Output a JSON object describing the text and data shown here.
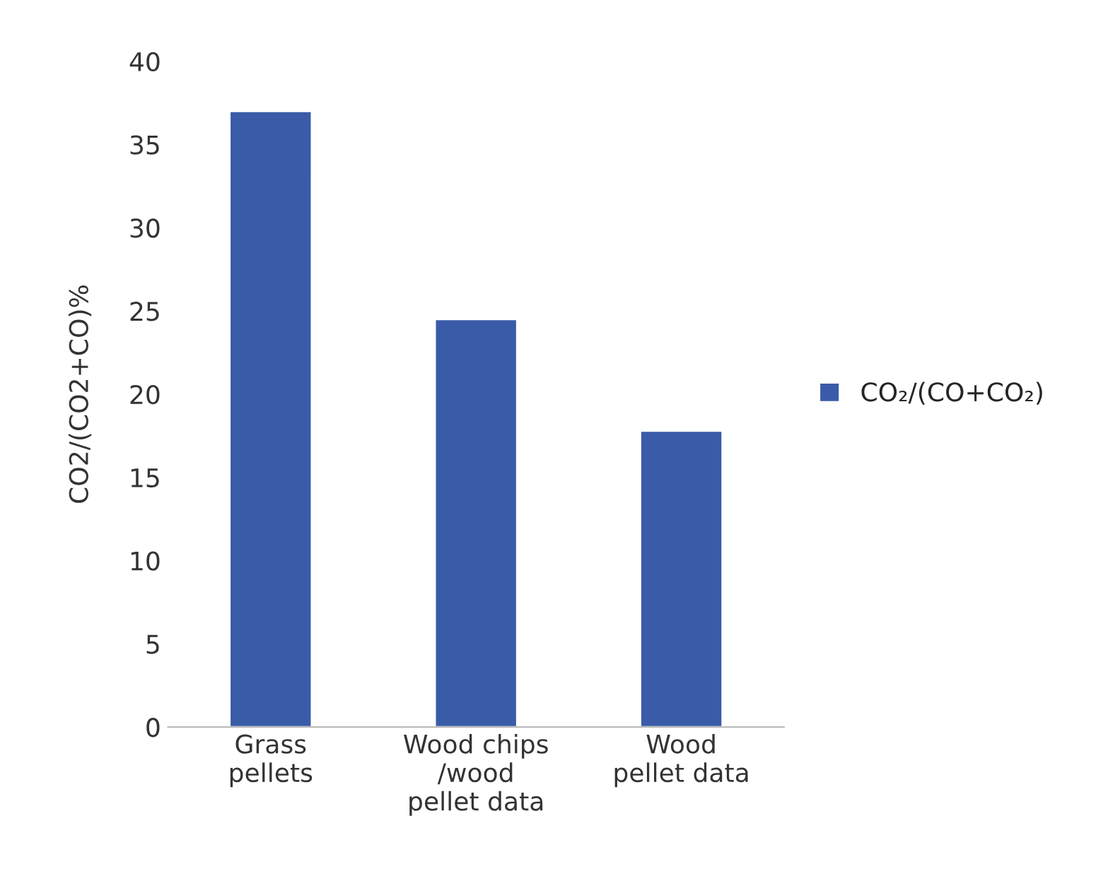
{
  "chart_data": {
    "type": "bar",
    "ylabel": "CO2/(CO2+CO)%",
    "categories": [
      "Grass\npellets",
      "Wood chips\n/wood\npellet data",
      "Wood\npellet data"
    ],
    "series": [
      {
        "name": "CO₂/(CO+CO₂)",
        "color": "#3a5ba8",
        "values": [
          37.0,
          24.5,
          17.8
        ]
      }
    ],
    "ylim": [
      0,
      40
    ],
    "yticks": [
      0,
      5,
      10,
      15,
      20,
      25,
      30,
      35,
      40
    ],
    "grid": false,
    "legend": "right"
  }
}
